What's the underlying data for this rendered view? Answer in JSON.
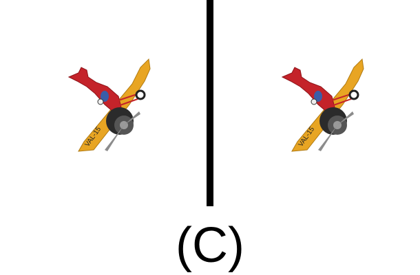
{
  "option": {
    "label": "(C)"
  },
  "plane": {
    "icon": "toy-airplane-icon",
    "tail_text": "VAL-15",
    "colors": {
      "body": "#c4232a",
      "wing": "#e8a523",
      "engine": "#2b2b2b",
      "prop": "#8c8c8c"
    }
  },
  "panels": [
    {
      "icon": "toy-airplane-icon"
    },
    {
      "icon": "toy-airplane-icon"
    }
  ]
}
